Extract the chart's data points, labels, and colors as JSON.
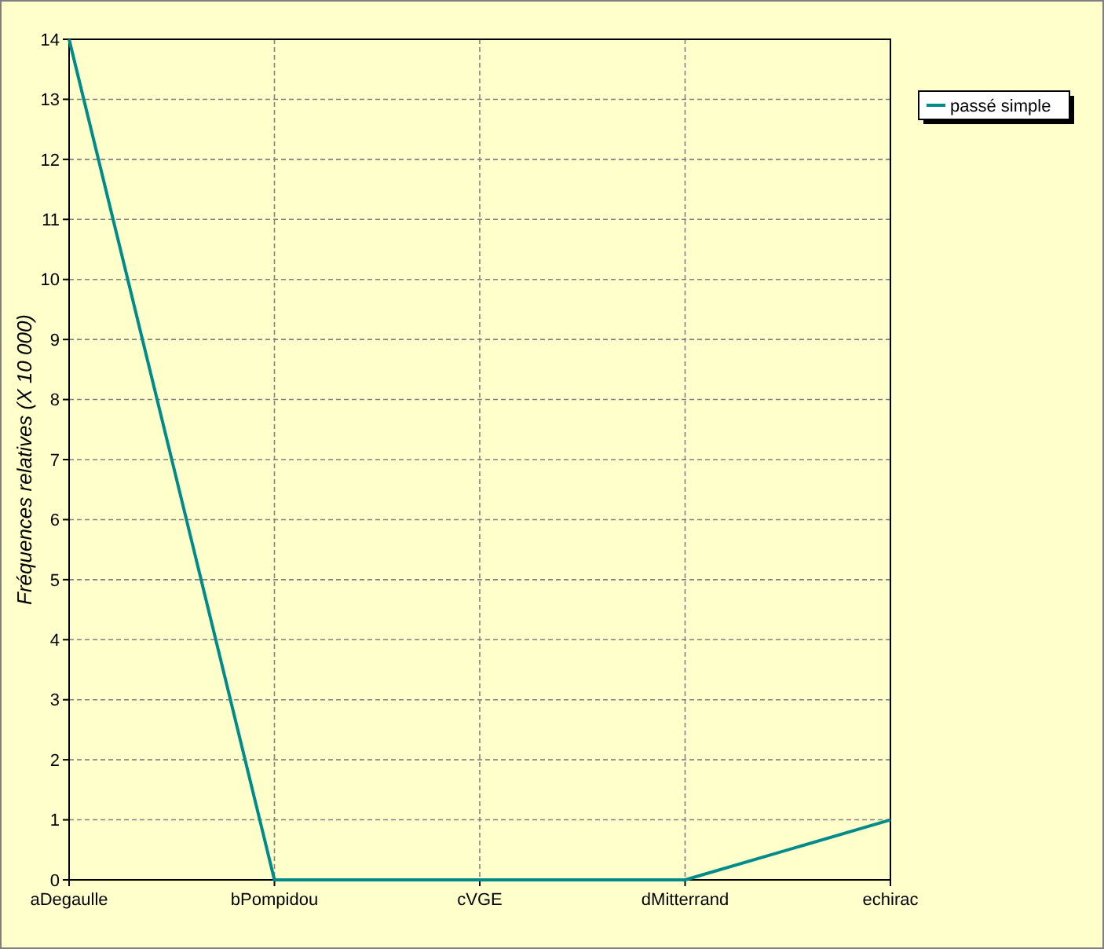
{
  "chart_data": {
    "type": "line",
    "ylabel": "Fréquences relatives (X 10 000)",
    "categories": [
      "aDegaulle",
      "bPompidou",
      "cVGE",
      "dMitterrand",
      "echirac"
    ],
    "series": [
      {
        "name": "passé simple",
        "color": "#008b8b",
        "values": [
          14,
          0,
          0,
          0,
          1
        ]
      }
    ],
    "ylim": [
      0,
      14
    ],
    "yticks": [
      0,
      1,
      2,
      3,
      4,
      5,
      6,
      7,
      8,
      9,
      10,
      11,
      12,
      13,
      14
    ],
    "grid": true,
    "legend": "top right",
    "marker": "none",
    "line_style": "solid"
  }
}
